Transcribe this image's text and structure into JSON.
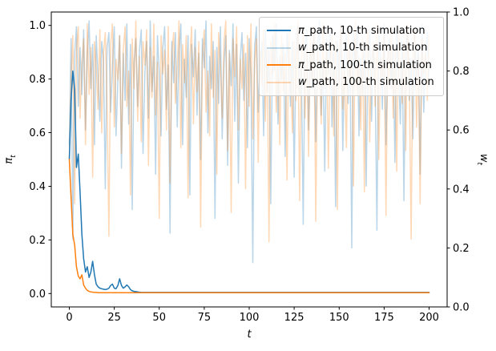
{
  "chart_data": {
    "type": "line",
    "title": "",
    "xlabel": "t",
    "ylabel_left": {
      "symbol": "π",
      "sub": "t"
    },
    "ylabel_right": {
      "symbol": "w",
      "sub": "t"
    },
    "x_start": 0,
    "x_step": 1,
    "n_points": 201,
    "xlim": [
      -10,
      210
    ],
    "ylim_left": [
      -0.05,
      1.05
    ],
    "ylim_right": [
      0.0,
      1.0
    ],
    "x_ticks": [
      0,
      25,
      50,
      75,
      100,
      125,
      150,
      175,
      200
    ],
    "y_tick_values": [
      0.0,
      0.2,
      0.4,
      0.6,
      0.8,
      1.0
    ],
    "y_tick_labels": [
      "0.0",
      "0.2",
      "0.4",
      "0.6",
      "0.8",
      "1.0"
    ],
    "grid": false,
    "legend_position": "upper right",
    "colors": {
      "blue": "#1f77b4",
      "orange": "#ff7f0e",
      "light_alpha": 0.3
    },
    "series": [
      {
        "id": "pi-path-10",
        "symbol": "π",
        "suffix": "_path, 10-th simulation",
        "axis": "left",
        "color": "#1f77b4",
        "alpha": 1,
        "linewidth": 1.5,
        "values": [
          0.5,
          0.72,
          0.83,
          0.76,
          0.47,
          0.52,
          0.38,
          0.22,
          0.13,
          0.08,
          0.1,
          0.06,
          0.08,
          0.12,
          0.07,
          0.035,
          0.025,
          0.02,
          0.018,
          0.016,
          0.015,
          0.016,
          0.02,
          0.03,
          0.035,
          0.02,
          0.018,
          0.03,
          0.055,
          0.03,
          0.02,
          0.025,
          0.032,
          0.025,
          0.015,
          0.01,
          0.008,
          0.007,
          0.006,
          0.005
        ],
        "extend_with": 0.004
      },
      {
        "id": "w-path-10",
        "symbol": "w",
        "suffix": "_path, 10-th simulation",
        "axis": "right",
        "color": "#1f77b4",
        "alpha": 0.3,
        "linewidth": 1.5,
        "values": [
          0.55,
          0.91,
          0.23,
          0.86,
          0.95,
          0.68,
          0.88,
          0.72,
          0.94,
          0.6,
          0.85,
          0.97,
          0.74,
          0.89,
          0.55,
          0.92,
          0.78,
          0.63,
          0.9,
          0.84,
          0.4,
          0.88,
          0.93,
          0.66,
          0.81,
          0.95,
          0.58,
          0.77,
          0.92,
          0.47,
          0.86,
          0.7,
          0.96,
          0.62,
          0.89,
          0.33,
          0.83,
          0.91,
          0.68,
          0.87,
          0.94,
          0.52,
          0.79,
          0.9,
          0.64,
          0.97,
          0.73,
          0.85,
          0.45,
          0.92,
          0.8,
          0.58,
          0.88,
          0.95,
          0.67,
          0.82,
          0.25,
          0.9,
          0.76,
          0.93,
          0.61,
          0.87,
          0.96,
          0.55,
          0.84,
          0.71,
          0.92,
          0.38,
          0.89,
          0.78,
          0.94,
          0.65,
          0.86,
          0.5,
          0.91,
          0.81,
          0.97,
          0.59,
          0.85,
          0.74,
          0.9,
          0.3,
          0.88,
          0.69,
          0.95,
          0.57,
          0.83,
          0.92,
          0.48,
          0.87,
          0.75,
          0.96,
          0.63,
          0.89,
          0.42,
          0.84,
          0.93,
          0.7,
          0.86,
          0.54,
          0.91,
          0.78,
          0.15,
          0.88,
          0.95,
          0.66,
          0.82,
          0.9,
          0.58,
          0.94,
          0.73,
          0.87,
          0.35,
          0.92,
          0.8,
          0.96,
          0.62,
          0.85,
          0.77,
          0.89,
          0.51,
          0.93,
          0.84,
          0.68,
          0.9,
          0.44,
          0.87,
          0.95,
          0.72,
          0.81,
          0.28,
          0.89,
          0.94,
          0.6,
          0.86,
          0.75,
          0.92,
          0.56,
          0.88,
          0.97,
          0.65,
          0.83,
          0.46,
          0.91,
          0.79,
          0.94,
          0.61,
          0.87,
          0.34,
          0.9,
          0.76,
          0.96,
          0.53,
          0.85,
          0.92,
          0.69,
          0.88,
          0.2,
          0.93,
          0.81,
          0.95,
          0.58,
          0.84,
          0.72,
          0.9,
          0.41,
          0.86,
          0.94,
          0.63,
          0.89,
          0.77,
          0.26,
          0.92,
          0.85,
          0.67,
          0.96,
          0.55,
          0.83,
          0.91,
          0.74,
          0.88,
          0.49,
          0.94,
          0.8,
          0.62,
          0.9,
          0.36,
          0.87,
          0.95,
          0.7,
          0.84,
          0.57,
          0.92,
          0.78,
          0.89,
          0.45,
          0.96,
          0.66,
          0.85,
          0.93,
          0.75
        ]
      },
      {
        "id": "pi-path-100",
        "symbol": "π",
        "suffix": "_path, 100-th simulation",
        "axis": "left",
        "color": "#ff7f0e",
        "alpha": 1,
        "linewidth": 1.5,
        "values": [
          0.5,
          0.36,
          0.22,
          0.18,
          0.1,
          0.065,
          0.055,
          0.07,
          0.032,
          0.02,
          0.012,
          0.008,
          0.006,
          0.005,
          0.004,
          0.004,
          0.003,
          0.003,
          0.003,
          0.003
        ],
        "extend_with": 0.003
      },
      {
        "id": "w-path-100",
        "symbol": "w",
        "suffix": "_path, 100-th simulation",
        "axis": "right",
        "color": "#ff7f0e",
        "alpha": 0.3,
        "linewidth": 1.5,
        "values": [
          0.5,
          0.78,
          0.92,
          0.35,
          0.87,
          0.95,
          0.64,
          0.83,
          0.91,
          0.55,
          0.96,
          0.72,
          0.88,
          0.44,
          0.9,
          0.81,
          0.67,
          0.94,
          0.59,
          0.86,
          0.93,
          0.7,
          0.24,
          0.89,
          0.96,
          0.61,
          0.84,
          0.77,
          0.92,
          0.52,
          0.87,
          0.95,
          0.68,
          0.8,
          0.38,
          0.91,
          0.74,
          0.97,
          0.63,
          0.85,
          0.56,
          0.9,
          0.82,
          0.94,
          0.48,
          0.88,
          0.71,
          0.96,
          0.65,
          0.83,
          0.3,
          0.92,
          0.79,
          0.87,
          0.6,
          0.95,
          0.42,
          0.86,
          0.93,
          0.69,
          0.81,
          0.97,
          0.54,
          0.89,
          0.76,
          0.92,
          0.37,
          0.84,
          0.95,
          0.62,
          0.88,
          0.73,
          0.9,
          0.27,
          0.85,
          0.94,
          0.66,
          0.8,
          0.58,
          0.96,
          0.71,
          0.87,
          0.45,
          0.93,
          0.82,
          0.64,
          0.9,
          0.97,
          0.53,
          0.86,
          0.32,
          0.91,
          0.78,
          0.95,
          0.6,
          0.84,
          0.74,
          0.89,
          0.4,
          0.92,
          0.68,
          0.96,
          0.57,
          0.83,
          0.91,
          0.49,
          0.87,
          0.75,
          0.94,
          0.63,
          0.88,
          0.22,
          0.9,
          0.79,
          0.96,
          0.66,
          0.84,
          0.55,
          0.92,
          0.73,
          0.86,
          0.43,
          0.94,
          0.81,
          0.59,
          0.9,
          0.7,
          0.97,
          0.36,
          0.85,
          0.93,
          0.64,
          0.88,
          0.51,
          0.91,
          0.77,
          0.95,
          0.29,
          0.87,
          0.82,
          0.62,
          0.96,
          0.74,
          0.89,
          0.47,
          0.84,
          0.92,
          0.58,
          0.9,
          0.33,
          0.86,
          0.95,
          0.67,
          0.8,
          0.54,
          0.93,
          0.76,
          0.88,
          0.41,
          0.97,
          0.72,
          0.85,
          0.6,
          0.91,
          0.39,
          0.87,
          0.94,
          0.56,
          0.83,
          0.9,
          0.68,
          0.96,
          0.5,
          0.84,
          0.78,
          0.92,
          0.31,
          0.89,
          0.75,
          0.95,
          0.64,
          0.87,
          0.46,
          0.93,
          0.81,
          0.69,
          0.9,
          0.53,
          0.96,
          0.77,
          0.23,
          0.88,
          0.94,
          0.61,
          0.85,
          0.35,
          0.91,
          0.79,
          0.86,
          0.7,
          0.92
        ]
      }
    ]
  }
}
